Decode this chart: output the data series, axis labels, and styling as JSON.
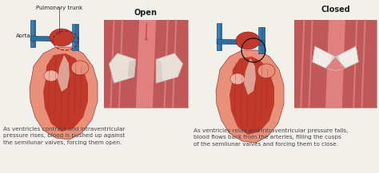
{
  "bg_color": "#f2f0eb",
  "title_open": "Open",
  "title_closed": "Closed",
  "label_aorta": "Aorta",
  "label_pulmonary": "Pulmonary trunk",
  "caption_left": "As ventricles contract and intraventricular\npressure rises, blood is pushed up against\nthe semilunar valves, forcing them open.",
  "caption_right": "As ventricles relax and intraventricular pressure falls,\nblood flows back from the arteries, filling the cusps\nof the semilunar valves and forcing them to close.",
  "heart_outer": "#e8907a",
  "heart_inner": "#c0392b",
  "heart_dark": "#8B1A1A",
  "heart_muscle": "#a02020",
  "heart_light": "#f0b0a0",
  "heart_cream": "#f5e8d8",
  "blue_vessel": "#2c6ea0",
  "blue_dark": "#1a4570",
  "blue_light": "#4a90c0",
  "valve_bg": "#d47070",
  "valve_tube_dark": "#c05050",
  "valve_tube_light": "#e89090",
  "valve_white": "#e8e0d8",
  "valve_white2": "#f0ece8",
  "valve_shadow": "#c8b8b0",
  "valve_pink_light": "#e8c0b8",
  "text_dark": "#222222",
  "text_gray": "#444444",
  "title_fontsize": 7,
  "caption_fontsize": 5.2,
  "label_fontsize": 5.0,
  "annot_fontsize": 4.8
}
